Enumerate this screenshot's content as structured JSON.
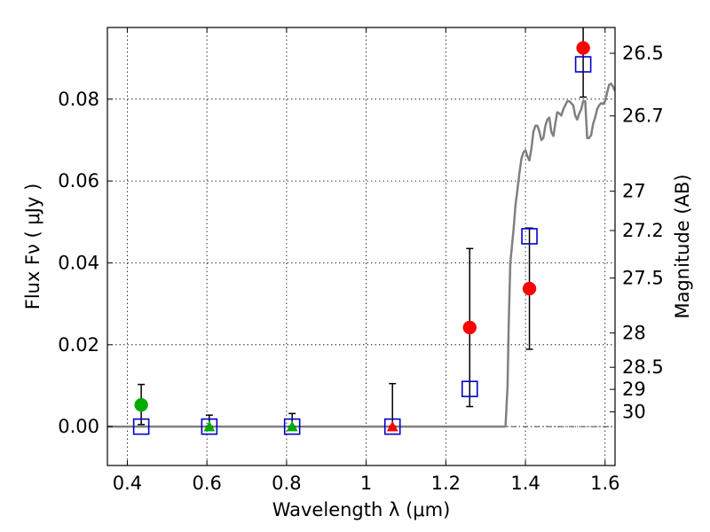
{
  "chart_data": {
    "type": "scatter",
    "xlabel": "Wavelength  λ (μm)",
    "ylabel": "Flux  Fν  ( μJy )",
    "ylabel_right": "Magnitude (AB)",
    "xlim": [
      0.35,
      1.625
    ],
    "ylim": [
      -0.0095,
      0.0975
    ],
    "grid": true,
    "x_ticks": [
      {
        "value": 0.4,
        "label": "0.4"
      },
      {
        "value": 0.6,
        "label": "0.6"
      },
      {
        "value": 0.8,
        "label": "0.8"
      },
      {
        "value": 1.0,
        "label": "1"
      },
      {
        "value": 1.2,
        "label": "1.2"
      },
      {
        "value": 1.4,
        "label": "1.4"
      },
      {
        "value": 1.6,
        "label": "1.6"
      }
    ],
    "y_ticks": [
      {
        "value": 0.0,
        "label": "0.00"
      },
      {
        "value": 0.02,
        "label": "0.02"
      },
      {
        "value": 0.04,
        "label": "0.04"
      },
      {
        "value": 0.06,
        "label": "0.06"
      },
      {
        "value": 0.08,
        "label": "0.08"
      }
    ],
    "magnitude_ticks": [
      {
        "label": "26.5",
        "flux": 0.0912
      },
      {
        "label": "26.7",
        "flux": 0.0759
      },
      {
        "label": "27",
        "flux": 0.0575
      },
      {
        "label": "27.2",
        "flux": 0.0479
      },
      {
        "label": "27.5",
        "flux": 0.0363
      },
      {
        "label": "28",
        "flux": 0.0229
      },
      {
        "label": "28.5",
        "flux": 0.0145
      },
      {
        "label": "29",
        "flux": 0.0091
      },
      {
        "label": "30",
        "flux": 0.0036
      }
    ],
    "colors": {
      "detection": "#ff0000",
      "optical": "#00aa00",
      "model": "#0000cc",
      "sed": "#808080"
    },
    "series": [
      {
        "marker": "circle",
        "color": "#ff0000",
        "points": [
          {
            "x": 1.26,
            "y": 0.0242,
            "ylow": 0.0049,
            "yhigh": 0.0435
          },
          {
            "x": 1.41,
            "y": 0.0337,
            "ylow": 0.0189,
            "yhigh": 0.0485
          },
          {
            "x": 1.545,
            "y": 0.0925,
            "ylow": 0.0805,
            "yhigh": 0.098
          }
        ]
      },
      {
        "marker": "circle",
        "color": "#00aa00",
        "points": [
          {
            "x": 0.435,
            "y": 0.0053,
            "ylow": 0.0005,
            "yhigh": 0.0103
          }
        ]
      },
      {
        "marker": "triangle",
        "color": "#00aa00",
        "points": [
          {
            "x": 0.606,
            "y": 0.0,
            "ylow": 0.0,
            "yhigh": 0.0028
          },
          {
            "x": 0.814,
            "y": 0.0,
            "ylow": 0.0,
            "yhigh": 0.0032
          }
        ]
      },
      {
        "marker": "triangle",
        "color": "#ff0000",
        "points": [
          {
            "x": 1.066,
            "y": 0.0,
            "ylow": 0.0,
            "yhigh": 0.0105
          }
        ]
      },
      {
        "marker": "open-square",
        "color": "#0000cc",
        "points": [
          {
            "x": 0.435,
            "y": 0.0
          },
          {
            "x": 0.606,
            "y": 0.0
          },
          {
            "x": 0.814,
            "y": 0.0
          },
          {
            "x": 1.066,
            "y": 0.0
          },
          {
            "x": 1.26,
            "y": 0.0092
          },
          {
            "x": 1.41,
            "y": 0.0465
          },
          {
            "x": 1.545,
            "y": 0.0885
          }
        ]
      }
    ],
    "sed_curve": {
      "color": "#808080",
      "x": [
        0.35,
        1.35,
        1.355,
        1.358,
        1.362,
        1.37,
        1.375,
        1.38,
        1.385,
        1.39,
        1.395,
        1.4,
        1.405,
        1.41,
        1.415,
        1.42,
        1.425,
        1.43,
        1.435,
        1.44,
        1.445,
        1.45,
        1.455,
        1.46,
        1.465,
        1.47,
        1.475,
        1.48,
        1.485,
        1.49,
        1.495,
        1.5,
        1.505,
        1.51,
        1.515,
        1.52,
        1.525,
        1.53,
        1.535,
        1.54,
        1.545,
        1.55,
        1.555,
        1.56,
        1.565,
        1.57,
        1.575,
        1.58,
        1.585,
        1.59,
        1.595,
        1.6,
        1.605,
        1.61,
        1.615,
        1.62,
        1.625
      ],
      "y": [
        0.0,
        0.0,
        0.01,
        0.025,
        0.04,
        0.048,
        0.054,
        0.058,
        0.062,
        0.0655,
        0.067,
        0.0675,
        0.066,
        0.065,
        0.068,
        0.072,
        0.0735,
        0.0735,
        0.072,
        0.07,
        0.0705,
        0.0735,
        0.075,
        0.0755,
        0.072,
        0.071,
        0.074,
        0.0768,
        0.0765,
        0.076,
        0.0775,
        0.0785,
        0.0795,
        0.0795,
        0.079,
        0.0785,
        0.076,
        0.075,
        0.0765,
        0.0775,
        0.0795,
        0.0795,
        0.0705,
        0.0705,
        0.0712,
        0.074,
        0.0755,
        0.0775,
        0.0785,
        0.079,
        0.0788,
        0.0795,
        0.0815,
        0.0835,
        0.0838,
        0.083,
        0.082
      ]
    },
    "baseline": {
      "y": 0.0,
      "style": "dash-dot",
      "color": "#000000"
    }
  }
}
